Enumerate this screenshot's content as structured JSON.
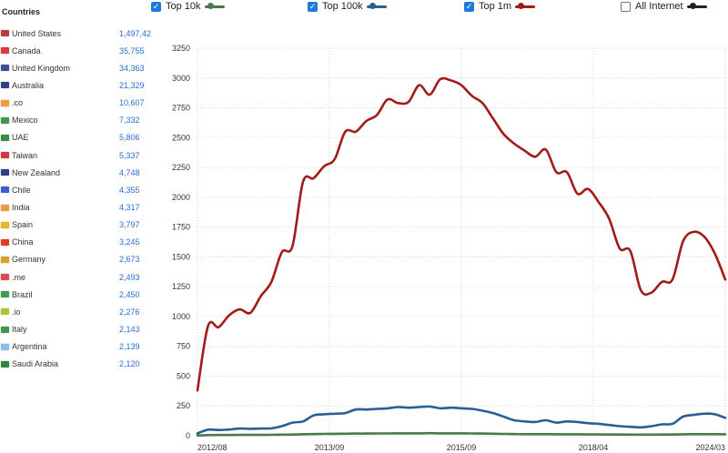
{
  "sidebar": {
    "title": "Countries",
    "items": [
      {
        "name": "United States",
        "count": "1,497,42",
        "flag": "us-flag-icon",
        "color": "#bf3a3a"
      },
      {
        "name": "Canada",
        "count": "35,755",
        "flag": "canada-flag-icon",
        "color": "#d63a3a"
      },
      {
        "name": "United Kingdom",
        "count": "34,363",
        "flag": "uk-flag-icon",
        "color": "#3a4f9a"
      },
      {
        "name": "Australia",
        "count": "21,329",
        "flag": "australia-flag-icon",
        "color": "#2a3f8f"
      },
      {
        "name": ".co",
        "count": "10,607",
        "flag": "co-tld-icon",
        "color": "#f29b38"
      },
      {
        "name": "Mexico",
        "count": "7,332",
        "flag": "mexico-flag-icon",
        "color": "#3a9a4a"
      },
      {
        "name": "UAE",
        "count": "5,806",
        "flag": "uae-flag-icon",
        "color": "#3a8a4a"
      },
      {
        "name": "Taiwan",
        "count": "5,337",
        "flag": "taiwan-flag-icon",
        "color": "#d23a3a"
      },
      {
        "name": "New Zealand",
        "count": "4,748",
        "flag": "new-zealand-flag-icon",
        "color": "#2a3f8f"
      },
      {
        "name": "Chile",
        "count": "4,355",
        "flag": "chile-flag-icon",
        "color": "#3a5fc8"
      },
      {
        "name": "India",
        "count": "4,317",
        "flag": "india-flag-icon",
        "color": "#f39a3a"
      },
      {
        "name": "Spain",
        "count": "3,797",
        "flag": "spain-flag-icon",
        "color": "#e8b820"
      },
      {
        "name": "China",
        "count": "3,245",
        "flag": "china-flag-icon",
        "color": "#e03a2a"
      },
      {
        "name": "Germany",
        "count": "2,673",
        "flag": "germany-flag-icon",
        "color": "#d8a020"
      },
      {
        "name": ".me",
        "count": "2,493",
        "flag": "me-tld-icon",
        "color": "#e04a4a"
      },
      {
        "name": "Brazil",
        "count": "2,450",
        "flag": "brazil-flag-icon",
        "color": "#3aa04a"
      },
      {
        "name": ".io",
        "count": "2,276",
        "flag": "io-tld-icon",
        "color": "#a8c83a"
      },
      {
        "name": "Italy",
        "count": "2,143",
        "flag": "italy-flag-icon",
        "color": "#3a9a4a"
      },
      {
        "name": "Argentina",
        "count": "2,139",
        "flag": "argentina-flag-icon",
        "color": "#8ac0e8"
      },
      {
        "name": "Saudi Arabia",
        "count": "2,120",
        "flag": "saudi-arabia-flag-icon",
        "color": "#2a8a3a"
      }
    ]
  },
  "legend": [
    {
      "label": "Top 10k",
      "checked": true,
      "color": "#4a7a4a"
    },
    {
      "label": "Top 100k",
      "checked": true,
      "color": "#2b5f93"
    },
    {
      "label": "Top 1m",
      "checked": true,
      "color": "#a31a1a"
    },
    {
      "label": "All Internet",
      "checked": false,
      "color": "#222222"
    }
  ],
  "chart_data": {
    "type": "line",
    "x_tick_labels": [
      "2012/08",
      "2013/09",
      "2015/09",
      "2018/04",
      "2024/03"
    ],
    "ylim": [
      0,
      3250
    ],
    "y_ticks": [
      0,
      250,
      500,
      750,
      1000,
      1250,
      1500,
      1750,
      2000,
      2250,
      2500,
      2750,
      3000,
      3250
    ],
    "grid": "dotted",
    "series": [
      {
        "name": "Top 1m",
        "color": "#a31a1a",
        "values": [
          380,
          920,
          910,
          1010,
          1060,
          1030,
          1170,
          1290,
          1540,
          1590,
          2130,
          2160,
          2260,
          2320,
          2550,
          2550,
          2640,
          2690,
          2820,
          2790,
          2800,
          2940,
          2860,
          2990,
          2980,
          2940,
          2850,
          2790,
          2660,
          2530,
          2450,
          2390,
          2340,
          2400,
          2210,
          2210,
          2030,
          2070,
          1960,
          1820,
          1570,
          1550,
          1220,
          1200,
          1290,
          1310,
          1630,
          1710,
          1670,
          1530,
          1310
        ]
      },
      {
        "name": "Top 100k",
        "color": "#2b5f93",
        "values": [
          20,
          50,
          48,
          52,
          60,
          58,
          60,
          62,
          80,
          110,
          120,
          170,
          180,
          185,
          190,
          220,
          220,
          225,
          230,
          240,
          235,
          240,
          245,
          230,
          235,
          230,
          225,
          210,
          190,
          160,
          130,
          120,
          115,
          130,
          110,
          120,
          115,
          105,
          100,
          90,
          80,
          75,
          70,
          80,
          95,
          100,
          160,
          175,
          185,
          180,
          150
        ]
      },
      {
        "name": "Top 10k",
        "color": "#4a7a4a",
        "values": [
          2,
          5,
          6,
          6,
          7,
          7,
          7,
          8,
          9,
          10,
          12,
          14,
          15,
          16,
          17,
          18,
          18,
          19,
          19,
          20,
          20,
          20,
          21,
          20,
          20,
          20,
          19,
          18,
          17,
          15,
          14,
          13,
          13,
          13,
          12,
          12,
          12,
          11,
          11,
          10,
          10,
          9,
          9,
          9,
          10,
          10,
          12,
          13,
          13,
          13,
          12
        ]
      }
    ]
  }
}
